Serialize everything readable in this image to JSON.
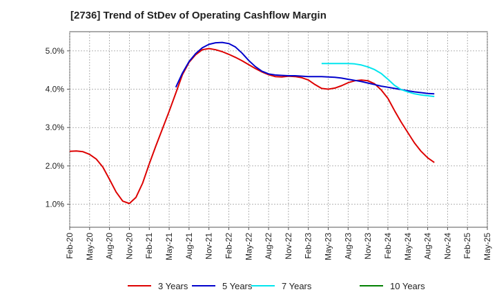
{
  "chart_data": {
    "type": "line",
    "title": "[2736]  Trend of StDev of Operating Cashflow Margin",
    "xlabel": "",
    "ylabel": "",
    "ylim": [
      0.4,
      5.5
    ],
    "y_ticks": [
      "1.0%",
      "2.0%",
      "3.0%",
      "4.0%",
      "5.0%"
    ],
    "y_tick_values": [
      1.0,
      2.0,
      3.0,
      4.0,
      5.0
    ],
    "grid": true,
    "legend_position": "bottom",
    "x_ticks": [
      "Feb-20",
      "May-20",
      "Aug-20",
      "Nov-20",
      "Feb-21",
      "May-21",
      "Aug-21",
      "Nov-21",
      "Feb-22",
      "May-22",
      "Aug-22",
      "Nov-22",
      "Feb-23",
      "May-23",
      "Aug-23",
      "Nov-23",
      "Feb-24",
      "May-24",
      "Aug-24",
      "Nov-24",
      "Feb-25",
      "May-25"
    ],
    "x_range_months": [
      0,
      63
    ],
    "series": [
      {
        "name": "3 Years",
        "color": "#dd0000",
        "points": [
          [
            0,
            2.38
          ],
          [
            1,
            2.39
          ],
          [
            2,
            2.37
          ],
          [
            3,
            2.3
          ],
          [
            4,
            2.18
          ],
          [
            5,
            1.97
          ],
          [
            6,
            1.65
          ],
          [
            7,
            1.32
          ],
          [
            8,
            1.08
          ],
          [
            9,
            1.02
          ],
          [
            10,
            1.18
          ],
          [
            11,
            1.55
          ],
          [
            12,
            2.05
          ],
          [
            13,
            2.52
          ],
          [
            14,
            2.97
          ],
          [
            15,
            3.42
          ],
          [
            16,
            3.9
          ],
          [
            17,
            4.38
          ],
          [
            18,
            4.7
          ],
          [
            19,
            4.9
          ],
          [
            20,
            5.03
          ],
          [
            21,
            5.06
          ],
          [
            22,
            5.03
          ],
          [
            23,
            4.98
          ],
          [
            24,
            4.91
          ],
          [
            25,
            4.83
          ],
          [
            26,
            4.74
          ],
          [
            27,
            4.64
          ],
          [
            28,
            4.54
          ],
          [
            29,
            4.45
          ],
          [
            30,
            4.38
          ],
          [
            31,
            4.33
          ],
          [
            32,
            4.32
          ],
          [
            33,
            4.34
          ],
          [
            34,
            4.33
          ],
          [
            35,
            4.3
          ],
          [
            36,
            4.24
          ],
          [
            37,
            4.12
          ],
          [
            38,
            4.02
          ],
          [
            39,
            4.0
          ],
          [
            40,
            4.03
          ],
          [
            41,
            4.09
          ],
          [
            42,
            4.17
          ],
          [
            43,
            4.22
          ],
          [
            44,
            4.24
          ],
          [
            45,
            4.22
          ],
          [
            46,
            4.14
          ],
          [
            47,
            3.98
          ],
          [
            48,
            3.76
          ],
          [
            49,
            3.44
          ],
          [
            50,
            3.14
          ],
          [
            51,
            2.87
          ],
          [
            52,
            2.6
          ],
          [
            53,
            2.38
          ],
          [
            54,
            2.21
          ],
          [
            55,
            2.09
          ]
        ]
      },
      {
        "name": "5 Years",
        "color": "#0000cc",
        "points": [
          [
            16,
            4.05
          ],
          [
            17,
            4.42
          ],
          [
            18,
            4.72
          ],
          [
            19,
            4.93
          ],
          [
            20,
            5.08
          ],
          [
            21,
            5.17
          ],
          [
            22,
            5.21
          ],
          [
            23,
            5.22
          ],
          [
            24,
            5.19
          ],
          [
            25,
            5.1
          ],
          [
            26,
            4.94
          ],
          [
            27,
            4.75
          ],
          [
            28,
            4.59
          ],
          [
            29,
            4.47
          ],
          [
            30,
            4.4
          ],
          [
            31,
            4.37
          ],
          [
            32,
            4.36
          ],
          [
            33,
            4.35
          ],
          [
            34,
            4.35
          ],
          [
            35,
            4.34
          ],
          [
            36,
            4.33
          ],
          [
            37,
            4.33
          ],
          [
            38,
            4.33
          ],
          [
            39,
            4.32
          ],
          [
            40,
            4.31
          ],
          [
            41,
            4.29
          ],
          [
            42,
            4.26
          ],
          [
            43,
            4.23
          ],
          [
            44,
            4.2
          ],
          [
            45,
            4.16
          ],
          [
            46,
            4.12
          ],
          [
            47,
            4.08
          ],
          [
            48,
            4.05
          ],
          [
            49,
            4.02
          ],
          [
            50,
            3.99
          ],
          [
            51,
            3.96
          ],
          [
            52,
            3.93
          ],
          [
            53,
            3.91
          ],
          [
            54,
            3.89
          ],
          [
            55,
            3.88
          ]
        ]
      },
      {
        "name": "7 Years",
        "color": "#00e5ee",
        "points": [
          [
            38,
            4.67
          ],
          [
            39,
            4.67
          ],
          [
            40,
            4.67
          ],
          [
            41,
            4.67
          ],
          [
            42,
            4.67
          ],
          [
            43,
            4.66
          ],
          [
            44,
            4.63
          ],
          [
            45,
            4.58
          ],
          [
            46,
            4.51
          ],
          [
            47,
            4.41
          ],
          [
            48,
            4.26
          ],
          [
            49,
            4.1
          ],
          [
            50,
            3.99
          ],
          [
            51,
            3.93
          ],
          [
            52,
            3.88
          ],
          [
            53,
            3.85
          ],
          [
            54,
            3.83
          ],
          [
            55,
            3.81
          ]
        ]
      },
      {
        "name": "10 Years",
        "color": "#008000",
        "points": []
      }
    ]
  }
}
